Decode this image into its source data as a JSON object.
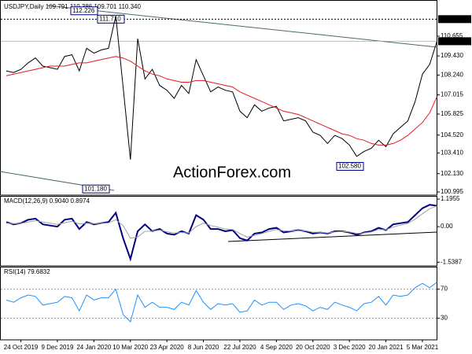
{
  "chart_data": [
    {
      "type": "line",
      "title": "USDJPY,Daily  109.791 110.386 109.701 110.340",
      "watermark": "ActionForex.com",
      "categories": [
        null,
        null,
        "24 Oct 2019",
        null,
        null,
        null,
        null,
        "9 Dec 2019",
        null,
        null,
        null,
        null,
        "24 Jan 2020",
        null,
        null,
        null,
        null,
        "10 Mar 2020",
        null,
        null,
        null,
        null,
        "23 Apr 2020",
        null,
        null,
        null,
        null,
        "8 Jun 2020",
        null,
        null,
        null,
        null,
        "22 Jul 2020",
        null,
        null,
        null,
        null,
        "4 Sep 2020",
        null,
        null,
        null,
        null,
        "20 Oct 2020",
        null,
        null,
        null,
        null,
        "3 Dec 2020",
        null,
        null,
        null,
        null,
        "20 Jan 2021",
        null,
        null,
        null,
        null,
        "5 Mar 2021",
        null,
        null
      ],
      "series": [
        {
          "name": "USDJPY",
          "color": "#000000",
          "values": [
            108.5,
            108.4,
            108.6,
            109.0,
            109.3,
            108.8,
            108.7,
            108.6,
            109.4,
            109.5,
            108.5,
            109.9,
            109.6,
            109.8,
            109.9,
            111.9,
            107.5,
            103.0,
            110.5,
            108.0,
            108.6,
            107.6,
            107.3,
            106.8,
            107.6,
            107.1,
            109.2,
            108.2,
            107.2,
            107.5,
            107.3,
            107.2,
            106.0,
            105.6,
            106.4,
            106.0,
            106.2,
            106.3,
            105.4,
            105.5,
            105.6,
            105.4,
            104.7,
            104.5,
            104.0,
            104.5,
            104.3,
            103.9,
            103.2,
            103.5,
            103.7,
            104.2,
            103.8,
            104.6,
            105.0,
            105.4,
            106.6,
            108.3,
            108.9,
            110.34
          ]
        },
        {
          "name": "MA",
          "color": "#e41a1c",
          "values": [
            108.2,
            108.3,
            108.4,
            108.5,
            108.6,
            108.7,
            108.8,
            108.8,
            108.8,
            108.9,
            109.0,
            109.0,
            109.1,
            109.2,
            109.3,
            109.4,
            109.3,
            109.1,
            108.8,
            108.5,
            108.3,
            108.2,
            108.0,
            107.9,
            107.8,
            107.8,
            107.9,
            107.9,
            107.8,
            107.7,
            107.6,
            107.5,
            107.2,
            107.0,
            106.8,
            106.6,
            106.4,
            106.2,
            106.0,
            105.9,
            105.8,
            105.6,
            105.4,
            105.2,
            105.0,
            104.8,
            104.6,
            104.5,
            104.3,
            104.2,
            104.0,
            103.9,
            103.9,
            104.0,
            104.2,
            104.5,
            104.9,
            105.3,
            105.9,
            106.9
          ]
        }
      ],
      "ylim": [
        100.8,
        112.75
      ],
      "yticks": [
        100.995,
        {
          "value": 102.13,
          "label": "102.130"
        },
        {
          "value": 103.41,
          "label": "103.410"
        },
        {
          "value": 104.52,
          "label": "104.520"
        },
        105.825,
        107.015,
        {
          "value": 108.24,
          "label": "108.240"
        },
        {
          "value": 109.43,
          "label": "109.430"
        },
        110.655
      ],
      "hline": {
        "value": 111.71,
        "label": "111.710"
      },
      "last_price": {
        "value": 110.34,
        "label": "110.340"
      },
      "annotations": [
        112.226,
        {
          "value": 111.71,
          "label": "111.710"
        },
        {
          "value": 101.18,
          "label": "101.180"
        },
        {
          "value": 102.58,
          "label": "102.580"
        }
      ]
    },
    {
      "type": "line",
      "title": "MACD(12,26,9) 0.9040 0.8974",
      "series": [
        {
          "name": "MACD",
          "color": "#000080",
          "values": [
            0.2,
            0.1,
            0.15,
            0.3,
            0.35,
            0.1,
            0.05,
            0.0,
            0.3,
            0.35,
            -0.1,
            0.2,
            0.1,
            0.15,
            0.2,
            0.6,
            -0.5,
            -1.4,
            -0.2,
            0.1,
            -0.2,
            -0.1,
            -0.3,
            -0.35,
            -0.2,
            -0.3,
            0.5,
            0.3,
            -0.1,
            -0.1,
            -0.2,
            -0.15,
            -0.5,
            -0.6,
            -0.3,
            -0.25,
            -0.1,
            -0.05,
            -0.25,
            -0.2,
            -0.15,
            -0.2,
            -0.3,
            -0.25,
            -0.3,
            -0.2,
            -0.2,
            -0.25,
            -0.35,
            -0.25,
            -0.2,
            -0.05,
            -0.15,
            0.1,
            0.15,
            0.2,
            0.5,
            0.8,
            0.95,
            0.904
          ]
        },
        {
          "name": "Signal",
          "color": "#a0a0a0",
          "values": [
            0.15,
            0.13,
            0.14,
            0.2,
            0.26,
            0.2,
            0.15,
            0.1,
            0.17,
            0.24,
            0.12,
            0.15,
            0.13,
            0.14,
            0.16,
            0.3,
            0.05,
            -0.5,
            -0.45,
            -0.2,
            -0.2,
            -0.15,
            -0.22,
            -0.28,
            -0.25,
            -0.27,
            0.0,
            0.15,
            0.05,
            -0.02,
            -0.1,
            -0.12,
            -0.3,
            -0.45,
            -0.38,
            -0.3,
            -0.2,
            -0.12,
            -0.18,
            -0.19,
            -0.17,
            -0.18,
            -0.24,
            -0.24,
            -0.27,
            -0.23,
            -0.21,
            -0.23,
            -0.29,
            -0.27,
            -0.23,
            -0.12,
            -0.13,
            -0.02,
            0.07,
            0.14,
            0.32,
            0.56,
            0.78,
            0.8974
          ]
        }
      ],
      "ylim": [
        -1.7,
        1.3
      ],
      "yticks": [
        -1.5387,
        {
          "value": 0,
          "label": "0.00"
        },
        1.1955
      ]
    },
    {
      "type": "line",
      "title": "RSI(14) 79.6832",
      "series": [
        {
          "name": "RSI",
          "color": "#1e90ff",
          "values": [
            55,
            52,
            58,
            62,
            60,
            48,
            50,
            52,
            60,
            58,
            40,
            62,
            55,
            58,
            58,
            70,
            35,
            25,
            62,
            45,
            52,
            45,
            45,
            42,
            52,
            48,
            68,
            52,
            42,
            50,
            48,
            50,
            38,
            40,
            55,
            48,
            52,
            52,
            42,
            48,
            50,
            47,
            40,
            45,
            42,
            52,
            48,
            45,
            40,
            50,
            52,
            60,
            48,
            62,
            60,
            62,
            72,
            78,
            72,
            79.6832
          ]
        }
      ],
      "ylim": [
        0,
        100
      ],
      "yticks": [
        30,
        70
      ]
    }
  ]
}
